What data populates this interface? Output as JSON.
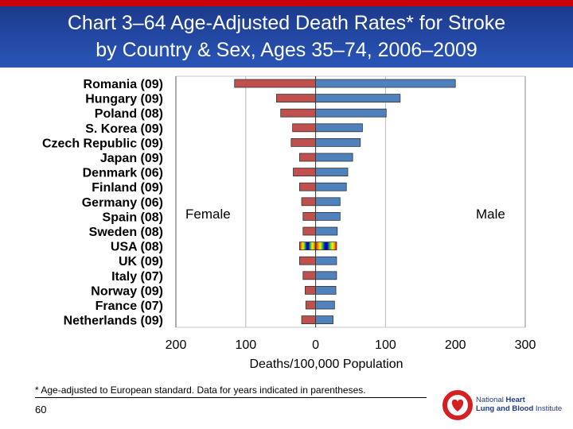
{
  "header": {
    "title_line1": "Chart 3–64 Age-Adjusted Death Rates* for Stroke",
    "title_line2": "by Country & Sex, Ages 35–74, 2006–2009"
  },
  "chart_data": {
    "type": "bar",
    "orientation": "horizontal-diverging",
    "categories": [
      "Romania (09)",
      "Hungary (09)",
      "Poland (08)",
      "S. Korea (09)",
      "Czech Republic (09)",
      "Japan (09)",
      "Denmark (06)",
      "Finland (09)",
      "Germany (06)",
      "Spain (08)",
      "Sweden (08)",
      "USA (08)",
      "UK (09)",
      "Italy (07)",
      "Norway (09)",
      "France (07)",
      "Netherlands (09)"
    ],
    "series": [
      {
        "name": "Female",
        "color": "#c0504d",
        "values": [
          116,
          56,
          50,
          33,
          35,
          23,
          32,
          23,
          20,
          18,
          18,
          23,
          23,
          18,
          15,
          14,
          20
        ]
      },
      {
        "name": "Male",
        "color": "#4f81bd",
        "values": [
          200,
          121,
          101,
          67,
          64,
          53,
          46,
          44,
          35,
          35,
          31,
          30,
          30,
          30,
          29,
          27,
          25
        ]
      }
    ],
    "highlight_category": "USA (08)",
    "xlabel": "Deaths/100,000 Population",
    "xlim": [
      -200,
      300
    ],
    "x_ticks": [
      -200,
      -100,
      0,
      100,
      200,
      300
    ],
    "x_tick_labels": [
      "200",
      "100",
      "0",
      "100",
      "200",
      "300"
    ],
    "grid": true,
    "female_label": "Female",
    "male_label": "Male"
  },
  "footnote": "* Age-adjusted to European standard. Data for years indicated in parentheses.",
  "page_number": "60",
  "logo": {
    "line1_a": "National ",
    "line1_b": "Heart",
    "line2_a": "Lung and Blood",
    "line2_b": " Institute"
  }
}
